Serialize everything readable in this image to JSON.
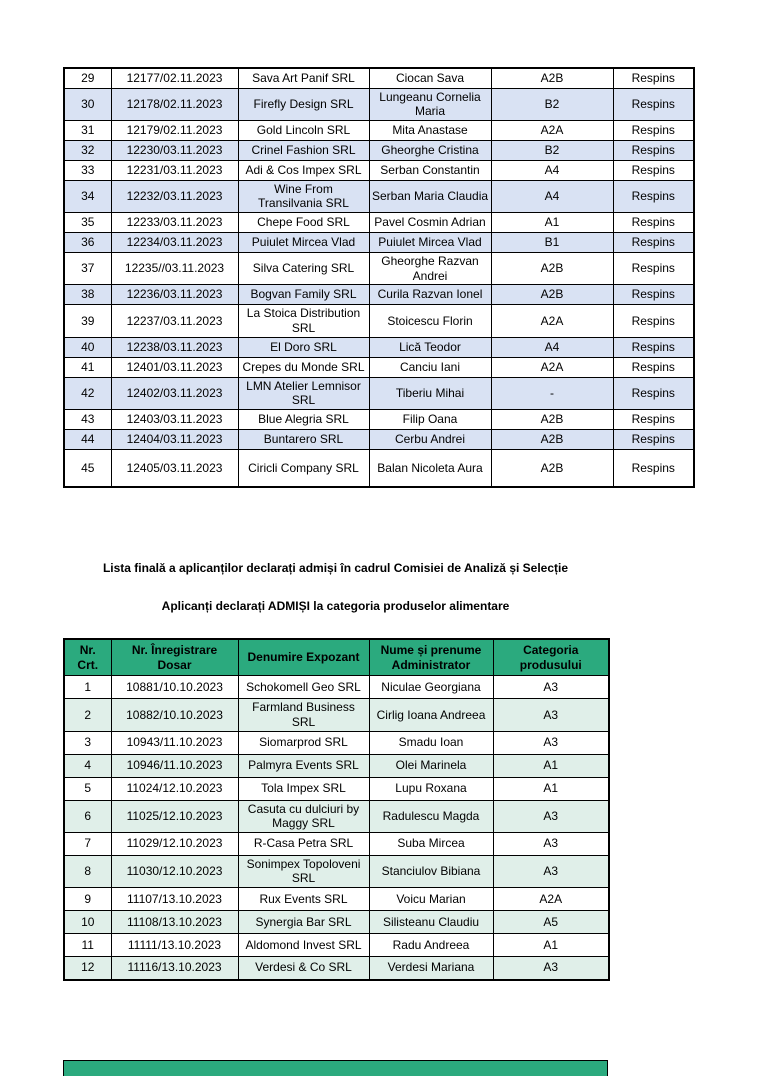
{
  "document": {
    "headings": {
      "final_list": "Lista finală a aplicanților declarați admiși în cadrul Comisiei de Analiză și Selecție",
      "admitted_category": "Aplicanți declarați ADMIȘI la categoria produselor alimentare"
    },
    "rejected_table": {
      "row_shade_color": "#D9E2F3",
      "status_label": "Respins",
      "rows": [
        [
          "29",
          "12177/02.11.2023",
          "Sava Art Panif SRL",
          "Ciocan Sava",
          "A2B",
          "Respins"
        ],
        [
          "30",
          "12178/02.11.2023",
          "Firefly Design SRL",
          "Lungeanu Cornelia Maria",
          "B2",
          "Respins"
        ],
        [
          "31",
          "12179/02.11.2023",
          "Gold Lincoln SRL",
          "Mita Anastase",
          "A2A",
          "Respins"
        ],
        [
          "32",
          "12230/03.11.2023",
          "Crinel Fashion SRL",
          "Gheorghe Cristina",
          "B2",
          "Respins"
        ],
        [
          "33",
          "12231/03.11.2023",
          "Adi & Cos Impex SRL",
          "Serban Constantin",
          "A4",
          "Respins"
        ],
        [
          "34",
          "12232/03.11.2023",
          "Wine From Transilvania SRL",
          "Serban Maria Claudia",
          "A4",
          "Respins"
        ],
        [
          "35",
          "12233/03.11.2023",
          "Chepe Food SRL",
          "Pavel Cosmin Adrian",
          "A1",
          "Respins"
        ],
        [
          "36",
          "12234/03.11.2023",
          "Puiulet Mircea Vlad",
          "Puiulet Mircea Vlad",
          "B1",
          "Respins"
        ],
        [
          "37",
          "12235//03.11.2023",
          "Silva Catering SRL",
          "Gheorghe Razvan Andrei",
          "A2B",
          "Respins"
        ],
        [
          "38",
          "12236/03.11.2023",
          "Bogvan Family SRL",
          "Curila Razvan Ionel",
          "A2B",
          "Respins"
        ],
        [
          "39",
          "12237/03.11.2023",
          "La Stoica Distribution SRL",
          "Stoicescu Florin",
          "A2A",
          "Respins"
        ],
        [
          "40",
          "12238/03.11.2023",
          "El Doro SRL",
          "Lică Teodor",
          "A4",
          "Respins"
        ],
        [
          "41",
          "12401/03.11.2023",
          "Crepes du Monde SRL",
          "Canciu Iani",
          "A2A",
          "Respins"
        ],
        [
          "42",
          "12402/03.11.2023",
          "LMN Atelier Lemnisor SRL",
          "Tiberiu Mihai",
          "-",
          "Respins"
        ],
        [
          "43",
          "12403/03.11.2023",
          "Blue Alegria SRL",
          "Filip Oana",
          "A2B",
          "Respins"
        ],
        [
          "44",
          "12404/03.11.2023",
          "Buntarero SRL",
          "Cerbu Andrei",
          "A2B",
          "Respins"
        ],
        [
          "45",
          "12405/03.11.2023",
          "Ciricli Company SRL",
          "Balan Nicoleta Aura",
          "A2B",
          "Respins"
        ]
      ]
    },
    "admitted_table": {
      "header_color": "#2BAA7E",
      "row_shade_color": "#E0EFE9",
      "columns": [
        "Nr. Crt.",
        "Nr. Înregistrare Dosar",
        "Denumire Expozant",
        "Nume și prenume Administrator",
        "Categoria produsului"
      ],
      "rows": [
        [
          "1",
          "10881/10.10.2023",
          "Schokomell Geo SRL",
          "Niculae Georgiana",
          "A3"
        ],
        [
          "2",
          "10882/10.10.2023",
          "Farmland Business SRL",
          "Cirlig Ioana Andreea",
          "A3"
        ],
        [
          "3",
          "10943/11.10.2023",
          "Siomarprod SRL",
          "Smadu Ioan",
          "A3"
        ],
        [
          "4",
          "10946/11.10.2023",
          "Palmyra Events SRL",
          "Olei Marinela",
          "A1"
        ],
        [
          "5",
          "11024/12.10.2023",
          "Tola Impex SRL",
          "Lupu Roxana",
          "A1"
        ],
        [
          "6",
          "11025/12.10.2023",
          "Casuta cu dulciuri by Maggy SRL",
          "Radulescu Magda",
          "A3"
        ],
        [
          "7",
          "11029/12.10.2023",
          "R-Casa Petra SRL",
          "Suba Mircea",
          "A3"
        ],
        [
          "8",
          "11030/12.10.2023",
          "Sonimpex Topoloveni SRL",
          "Stanciulov Bibiana",
          "A3"
        ],
        [
          "9",
          "11107/13.10.2023",
          "Rux Events SRL",
          "Voicu Marian",
          "A2A"
        ],
        [
          "10",
          "11108/13.10.2023",
          "Synergia Bar SRL",
          "Silisteanu Claudiu",
          "A5"
        ],
        [
          "11",
          "11111/13.10.2023",
          "Aldomond Invest SRL",
          "Radu Andreea",
          "A1"
        ],
        [
          "12",
          "11116/13.10.2023",
          "Verdesi & Co SRL",
          "Verdesi Mariana",
          "A3"
        ]
      ]
    },
    "next_page_sliver_color": "#2BAA7E"
  }
}
